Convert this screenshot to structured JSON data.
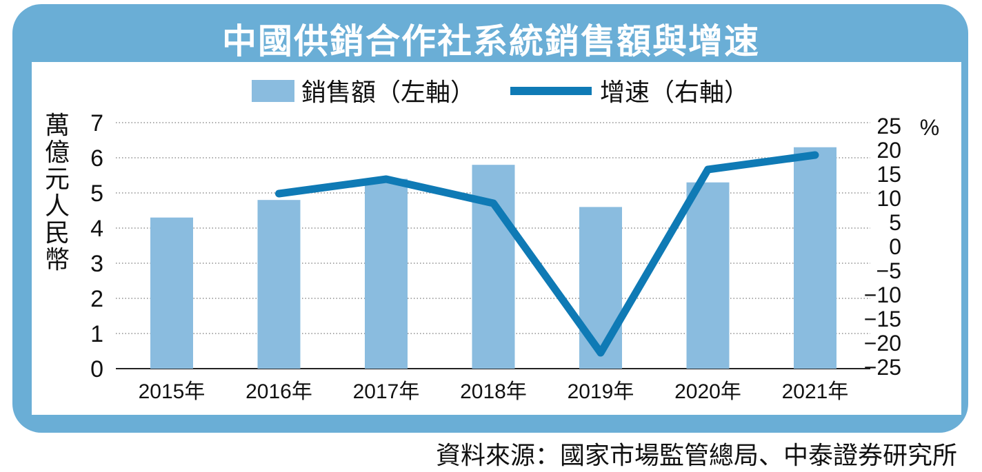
{
  "title": "中國供銷合作社系統銷售額與增速",
  "source": "資料來源：國家市場監管總局、中泰證券研究所",
  "colors": {
    "frame": "#6aaed6",
    "bar": "#8abcdf",
    "line": "#0f7ab5"
  },
  "chart_data": {
    "type": "bar",
    "categories": [
      "2015年",
      "2016年",
      "2017年",
      "2018年",
      "2019年",
      "2020年",
      "2021年"
    ],
    "series": [
      {
        "name": "銷售額（左軸）",
        "type": "bar",
        "axis": "left",
        "values": [
          4.3,
          4.8,
          5.4,
          5.8,
          4.6,
          5.3,
          6.3
        ]
      },
      {
        "name": "增速（右軸）",
        "type": "line",
        "axis": "right",
        "values": [
          null,
          11,
          14,
          9,
          -22,
          16,
          19
        ]
      }
    ],
    "ylabel": "萬億元人民幣",
    "y2label": "%",
    "ylim": [
      0,
      7
    ],
    "y2lim": [
      -25,
      25
    ],
    "yticks": [
      "0",
      "1",
      "2",
      "3",
      "4",
      "5",
      "6",
      "7"
    ],
    "y2ticks": [
      "−25",
      "−20",
      "−15",
      "−10",
      "−5",
      "0",
      "5",
      "10",
      "15",
      "20",
      "25"
    ],
    "grid": true,
    "legend_position": "top"
  }
}
